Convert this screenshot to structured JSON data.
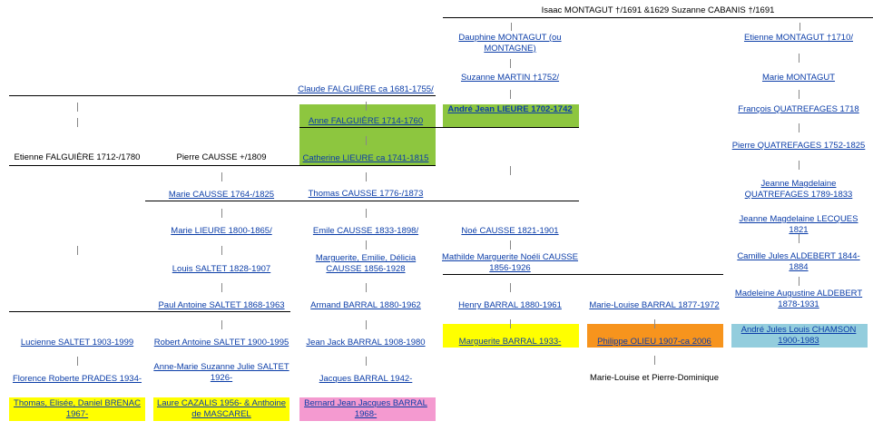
{
  "header": {
    "title": "Isaac MONTAGUT †/1691 &1629 Suzanne CABANIS †/1691"
  },
  "columns": [
    [
      "Etienne FALGUIÈRE 1712-/1780",
      "Lucienne SALTET 1903-1999",
      "Florence Roberte PRADES 1934-",
      "Thomas, Elisée, Daniel BRENAC 1967-"
    ],
    [
      "Pierre CAUSSE +/1809",
      "Marie CAUSSE 1764-/1825",
      "Marie LIEURE 1800-1865/",
      "Louis SALTET 1828-1907",
      "Paul Antoine SALTET 1868-1963",
      "Robert Antoine SALTET 1900-1995",
      "Anne-Marie Suzanne Julie SALTET 1926-",
      "Laure CAZALIS 1956- & Anthoine de MASCAREL"
    ],
    [
      "Claude FALGUIÈRE ca 1681-1755/",
      "Anne FALGUIÈRE 1714-1760",
      "Catherine LIEURE ca 1741-1815",
      "Thomas CAUSSE 1776-/1873",
      "Emile CAUSSE 1833-1898/",
      "Marguerite, Emilie, Délicia CAUSSE 1856-1928",
      "Armand BARRAL 1880-1962",
      "Jean Jack BARRAL 1908-1980",
      "Jacques BARRAL 1942-",
      "Bernard Jean Jacques BARRAL 1968-"
    ],
    [
      "Dauphine MONTAGUT (ou MONTAGNE)",
      "Suzanne MARTIN †1752/",
      "André Jean LIEURE 1702-1742",
      "Noé CAUSSE 1821-1901",
      "Mathilde Marguerite Noéli CAUSSE 1856-1926",
      "Henry BARRAL 1880-1961",
      "Marguerite BARRAL 1933-"
    ],
    [
      "Marie-Louise BARRAL 1877-1972",
      "Philippe OLIEU 1907-ca 2006",
      "Marie-Louise et Pierre-Dominique"
    ],
    [
      "Etienne MONTAGUT †1710/",
      "Marie MONTAGUT",
      "François QUATREFAGES 1718",
      "Pierre QUATREFAGES 1752-1825",
      "Jeanne Magdelaine QUATREFAGES 1789-1833",
      "Jeanne Magdelaine LECQUES 1821",
      "Camille Jules ALDEBERT 1844-1884",
      "Madeleine Augustine ALDEBERT 1878-1931",
      "André Jules Louis CHAMSON 1900-1983"
    ]
  ]
}
